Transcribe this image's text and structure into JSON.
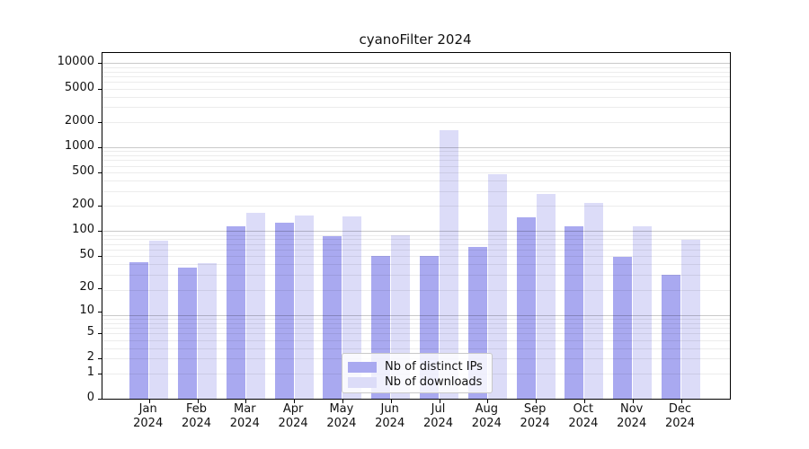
{
  "title": "cyanoFilter 2024",
  "legend": {
    "items": [
      {
        "label": "Nb of distinct IPs",
        "color": "#a9a9f0"
      },
      {
        "label": "Nb of downloads",
        "color": "#dcdcf8"
      }
    ]
  },
  "chart_data": {
    "type": "bar",
    "title": "cyanoFilter 2024",
    "categories": [
      "Jan 2024",
      "Feb 2024",
      "Mar 2024",
      "Apr 2024",
      "May 2024",
      "Jun 2024",
      "Jul 2024",
      "Aug 2024",
      "Sep 2024",
      "Oct 2024",
      "Nov 2024",
      "Dec 2024"
    ],
    "series": [
      {
        "name": "Nb of distinct IPs",
        "color": "#a9a9f0",
        "values": [
          41,
          36,
          113,
          124,
          86,
          49,
          49,
          64,
          144,
          112,
          48,
          29
        ]
      },
      {
        "name": "Nb of downloads",
        "color": "#dcdcf8",
        "values": [
          75,
          40,
          165,
          152,
          148,
          89,
          1600,
          480,
          275,
          216,
          114,
          78
        ]
      }
    ],
    "yscale": "log(1+x)",
    "y_ticks": [
      0,
      1,
      2,
      5,
      10,
      20,
      50,
      100,
      200,
      500,
      1000,
      2000,
      5000,
      10000
    ],
    "ylim": [
      0,
      12900
    ],
    "xlabel": "",
    "ylabel": "",
    "grid": "horizontal log major and minor lines drawn above bars",
    "legend_position": "lower center"
  }
}
